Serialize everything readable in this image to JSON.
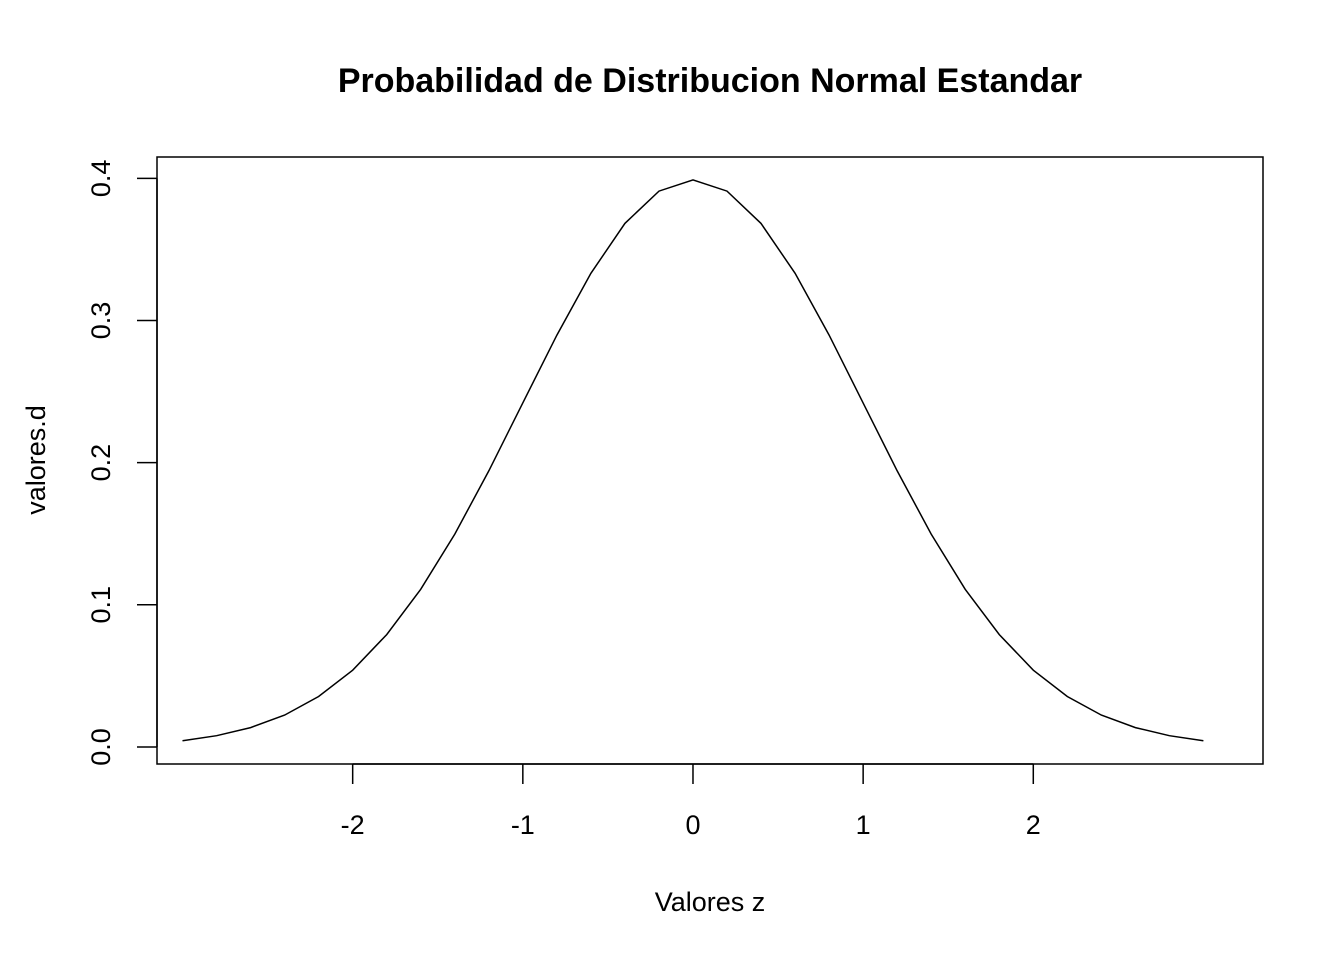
{
  "chart_data": {
    "type": "line",
    "title": "Probabilidad de Distribucion Normal Estandar",
    "xlabel": "Valores z",
    "ylabel": "valores.d",
    "xlim": [
      -3.15,
      3.35
    ],
    "ylim": [
      -0.012,
      0.415
    ],
    "x_ticks": [
      -2,
      -1,
      0,
      1,
      2
    ],
    "x_tick_labels": [
      "-2",
      "-1",
      "0",
      "1",
      "2"
    ],
    "y_ticks": [
      0.0,
      0.1,
      0.2,
      0.3,
      0.4
    ],
    "y_tick_labels": [
      "0.0",
      "0.1",
      "0.2",
      "0.3",
      "0.4"
    ],
    "grid": false,
    "legend": "none",
    "line_color": "#000000",
    "series": [
      {
        "x": [
          -3.0,
          -2.8,
          -2.6,
          -2.4,
          -2.2,
          -2.0,
          -1.8,
          -1.6,
          -1.4,
          -1.2,
          -1.0,
          -0.8,
          -0.6,
          -0.4,
          -0.2,
          0.0,
          0.2,
          0.4,
          0.6,
          0.8,
          1.0,
          1.2,
          1.4,
          1.6,
          1.8,
          2.0,
          2.2,
          2.4,
          2.6,
          2.8,
          3.0
        ],
        "y": [
          0.0044,
          0.0079,
          0.0136,
          0.0224,
          0.0355,
          0.054,
          0.079,
          0.1109,
          0.1497,
          0.1942,
          0.242,
          0.2897,
          0.3332,
          0.3683,
          0.391,
          0.3989,
          0.391,
          0.3683,
          0.3332,
          0.2897,
          0.242,
          0.1942,
          0.1497,
          0.1109,
          0.079,
          0.054,
          0.0355,
          0.0224,
          0.0136,
          0.0079,
          0.0044
        ]
      }
    ]
  }
}
